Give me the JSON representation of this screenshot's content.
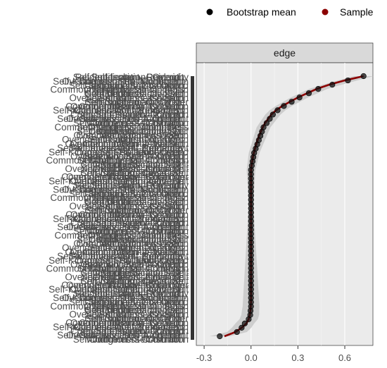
{
  "legend": {
    "items": [
      {
        "label": "Bootstrap mean",
        "color": "#000000"
      },
      {
        "label": "Sample",
        "color": "#8b0000"
      }
    ]
  },
  "chart_data": {
    "type": "scatter",
    "facet_label": "edge",
    "xlim": [
      -0.35,
      0.78
    ],
    "x_ticks": [
      -0.3,
      0.0,
      0.3,
      0.6
    ],
    "x_tick_labels": [
      "-0.3",
      "0.0",
      "0.3",
      "0.6"
    ],
    "grid": true,
    "legend_position": "top",
    "colors": {
      "bootstrap_mean": "#000000",
      "sample": "#8b0000",
      "ci_band": "#c8c8c8",
      "panel_bg": "#ebebeb"
    },
    "y_category_labels": [
      "Reidentification--Reidentity",
      "Self-Judgement--Common",
      "Self-Isolation--Overid",
      "Common--Reidentification",
      "Self-Kindness--Self-Judgement",
      "Overidentification--Common",
      "Self-Judgement--Overid",
      "Common--Self-Isolation",
      "Self-Judgement--Common",
      "Mindfulness--Common",
      "Commonhumanity--Mindfulness",
      "Overidentification--Self",
      "Self-Kindness--Common",
      "Commonhumanity--Self",
      "Overidentification--Self",
      "Self-Kindness--Common",
      "Overidentification--Isolation",
      "Self-Kindness--Self",
      "Commonhumanity--Over",
      "Self-Isolation--Common",
      "Self-Judgement--Over",
      "Overidentification--Common",
      "Commonhumanity--Isolation",
      "CommonHumanity--Self",
      "Overidentification--Isolation",
      "Self-Kindness--Self-Judgement"
    ],
    "series": [
      {
        "name": "Sample",
        "x": [
          -0.17,
          -0.1,
          -0.06,
          -0.03,
          -0.015,
          -0.008,
          -0.004,
          -0.002,
          0.0,
          0.0,
          0.0,
          0.0,
          0.0,
          0.0,
          0.0,
          0.0,
          0.0,
          0.0,
          0.0,
          0.0,
          0.0,
          0.0,
          0.0,
          0.0,
          0.0,
          0.0,
          0.0,
          0.0,
          0.0,
          0.0,
          0.0,
          0.0,
          0.0,
          0.0,
          0.0,
          0.0,
          0.0,
          0.0,
          0.0,
          0.0,
          0.003,
          0.007,
          0.012,
          0.018,
          0.025,
          0.033,
          0.042,
          0.052,
          0.063,
          0.075,
          0.09,
          0.11,
          0.13,
          0.16,
          0.2,
          0.25,
          0.3,
          0.36,
          0.42,
          0.5,
          0.6,
          0.72
        ]
      },
      {
        "name": "Bootstrap mean",
        "x": [
          -0.2,
          -0.09,
          -0.06,
          -0.04,
          -0.015,
          -0.005,
          -0.003,
          0.0,
          0.0,
          0.0,
          0.0,
          0.0,
          0.0,
          0.0,
          0.0,
          0.0,
          0.0,
          0.0,
          0.0,
          0.0,
          0.0,
          0.0,
          0.0,
          0.0,
          0.0,
          0.0,
          0.0,
          0.0,
          0.0,
          0.0,
          0.0,
          0.0,
          0.0,
          0.0,
          0.0,
          0.0,
          0.0,
          0.0,
          0.0,
          0.0,
          0.005,
          0.01,
          0.015,
          0.02,
          0.03,
          0.04,
          0.05,
          0.06,
          0.07,
          0.08,
          0.1,
          0.12,
          0.14,
          0.17,
          0.21,
          0.26,
          0.31,
          0.37,
          0.43,
          0.52,
          0.62,
          0.72
        ]
      }
    ]
  }
}
